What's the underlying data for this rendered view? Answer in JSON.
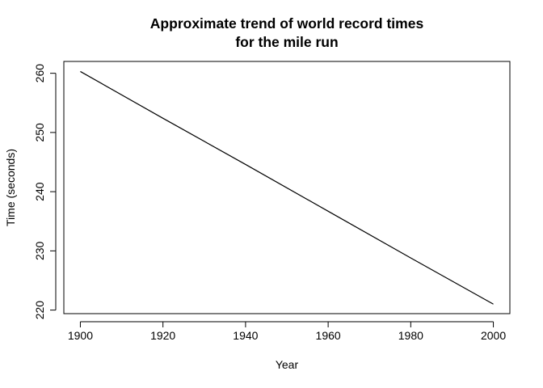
{
  "chart_data": {
    "type": "line",
    "title_lines": [
      "Approximate trend of world record times",
      "for the mile run"
    ],
    "xlabel": "Year",
    "ylabel": "Time (seconds)",
    "xlim": [
      1896,
      2004
    ],
    "ylim": [
      219.4,
      262
    ],
    "x_ticks": [
      1900,
      1920,
      1940,
      1960,
      1980,
      2000
    ],
    "y_ticks": [
      220,
      230,
      240,
      250,
      260
    ],
    "grid": false,
    "legend": "none",
    "series": [
      {
        "color": "#000000",
        "x": [
          1900,
          1920,
          1940,
          1960,
          1980,
          2000
        ],
        "y": [
          260.3,
          252.4,
          244.6,
          236.7,
          228.8,
          221.0
        ]
      }
    ]
  }
}
